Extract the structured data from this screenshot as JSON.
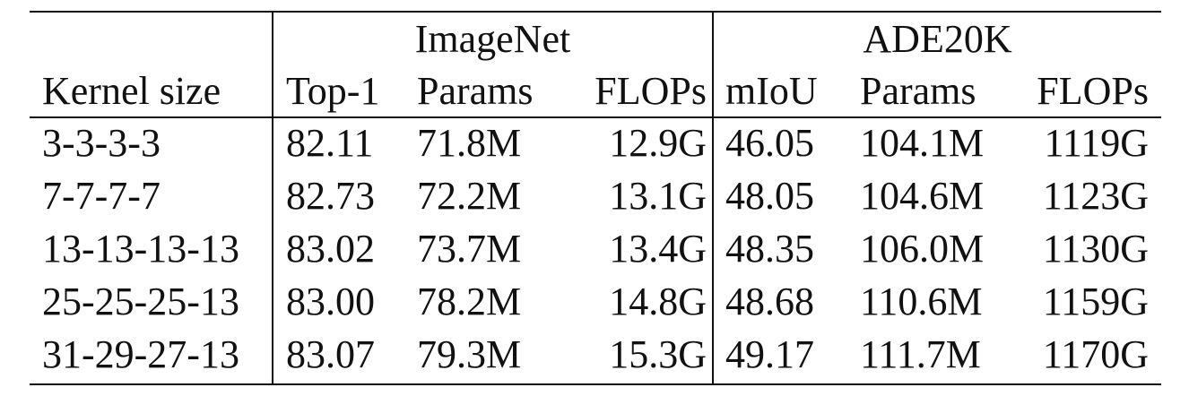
{
  "table": {
    "group_headers": [
      "ImageNet",
      "ADE20K"
    ],
    "column_headers": [
      "Kernel size",
      "Top-1",
      "Params",
      "FLOPs",
      "mIoU",
      "Params",
      "FLOPs"
    ],
    "rows": [
      [
        "3-3-3-3",
        "82.11",
        "71.8M",
        "12.9G",
        "46.05",
        "104.1M",
        "1119G"
      ],
      [
        "7-7-7-7",
        "82.73",
        "72.2M",
        "13.1G",
        "48.05",
        "104.6M",
        "1123G"
      ],
      [
        "13-13-13-13",
        "83.02",
        "73.7M",
        "13.4G",
        "48.35",
        "106.0M",
        "1130G"
      ],
      [
        "25-25-25-13",
        "83.00",
        "78.2M",
        "14.8G",
        "48.68",
        "110.6M",
        "1159G"
      ],
      [
        "31-29-27-13",
        "83.07",
        "79.3M",
        "15.3G",
        "49.17",
        "111.7M",
        "1170G"
      ]
    ]
  }
}
